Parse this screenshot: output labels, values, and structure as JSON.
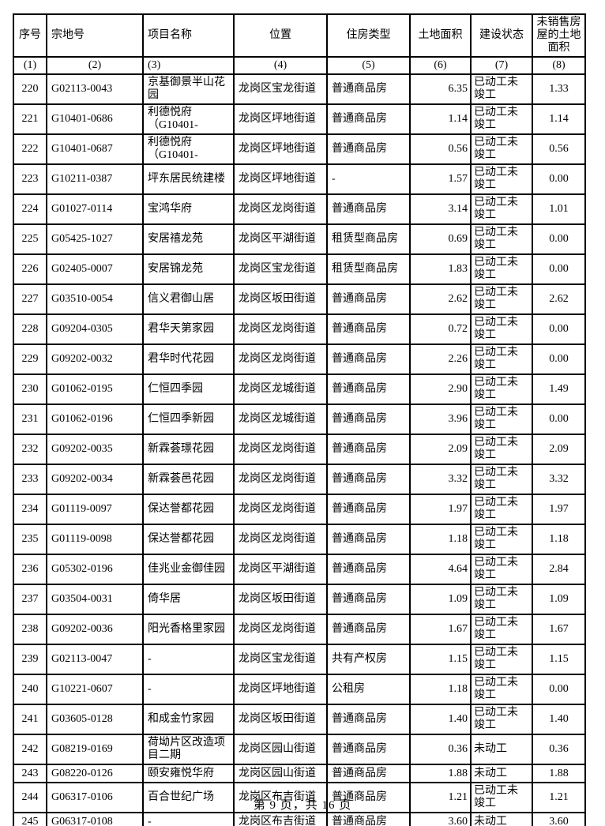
{
  "footer": {
    "text": "第 9 页，共 16 页"
  },
  "table": {
    "headers": [
      "序号",
      "宗地号",
      "项目名称",
      "位置",
      "住房类型",
      "土地面积",
      "建设状态",
      "未销售房\n屋的土地\n面积"
    ],
    "column_numbers": [
      "(1)",
      "(2)",
      "(3)",
      "(4)",
      "(5)",
      "(6)",
      "(7)",
      "(8)"
    ],
    "rows": [
      {
        "no": "220",
        "parcel": "G02113-0043",
        "name": "京基御景半山花\n园",
        "location": "龙岗区宝龙街道",
        "type": "普通商品房",
        "area": "6.35",
        "status": "已动工未\n竣工",
        "unsold": "1.33"
      },
      {
        "no": "221",
        "parcel": "G10401-0686",
        "name": "利德悦府\n（G10401-",
        "location": "龙岗区坪地街道",
        "type": "普通商品房",
        "area": "1.14",
        "status": "已动工未\n竣工",
        "unsold": "1.14"
      },
      {
        "no": "222",
        "parcel": "G10401-0687",
        "name": "利德悦府\n（G10401-",
        "location": "龙岗区坪地街道",
        "type": "普通商品房",
        "area": "0.56",
        "status": "已动工未\n竣工",
        "unsold": "0.56"
      },
      {
        "no": "223",
        "parcel": "G10211-0387",
        "name": "坪东居民统建楼",
        "location": "龙岗区坪地街道",
        "type": "-",
        "area": "1.57",
        "status": "已动工未\n竣工",
        "unsold": "0.00"
      },
      {
        "no": "224",
        "parcel": "G01027-0114",
        "name": "宝鸿华府",
        "location": "龙岗区龙岗街道",
        "type": "普通商品房",
        "area": "3.14",
        "status": "已动工未\n竣工",
        "unsold": "1.01"
      },
      {
        "no": "225",
        "parcel": "G05425-1027",
        "name": "安居禧龙苑",
        "location": "龙岗区平湖街道",
        "type": "租赁型商品房",
        "area": "0.69",
        "status": "已动工未\n竣工",
        "unsold": "0.00"
      },
      {
        "no": "226",
        "parcel": "G02405-0007",
        "name": "安居锦龙苑",
        "location": "龙岗区宝龙街道",
        "type": "租赁型商品房",
        "area": "1.83",
        "status": "已动工未\n竣工",
        "unsold": "0.00"
      },
      {
        "no": "227",
        "parcel": "G03510-0054",
        "name": "信义君御山居",
        "location": "龙岗区坂田街道",
        "type": "普通商品房",
        "area": "2.62",
        "status": "已动工未\n竣工",
        "unsold": "2.62"
      },
      {
        "no": "228",
        "parcel": "G09204-0305",
        "name": "君华天第家园",
        "location": "龙岗区龙岗街道",
        "type": "普通商品房",
        "area": "0.72",
        "status": "已动工未\n竣工",
        "unsold": "0.00"
      },
      {
        "no": "229",
        "parcel": "G09202-0032",
        "name": "君华时代花园",
        "location": "龙岗区龙岗街道",
        "type": "普通商品房",
        "area": "2.26",
        "status": "已动工未\n竣工",
        "unsold": "0.00"
      },
      {
        "no": "230",
        "parcel": "G01062-0195",
        "name": "仁恒四季园",
        "location": "龙岗区龙城街道",
        "type": "普通商品房",
        "area": "2.90",
        "status": "已动工未\n竣工",
        "unsold": "1.49"
      },
      {
        "no": "231",
        "parcel": "G01062-0196",
        "name": "仁恒四季新园",
        "location": "龙岗区龙城街道",
        "type": "普通商品房",
        "area": "3.96",
        "status": "已动工未\n竣工",
        "unsold": "0.00"
      },
      {
        "no": "232",
        "parcel": "G09202-0035",
        "name": "新霖荟璟花园",
        "location": "龙岗区龙岗街道",
        "type": "普通商品房",
        "area": "2.09",
        "status": "已动工未\n竣工",
        "unsold": "2.09"
      },
      {
        "no": "233",
        "parcel": "G09202-0034",
        "name": "新霖荟邑花园",
        "location": "龙岗区龙岗街道",
        "type": "普通商品房",
        "area": "3.32",
        "status": "已动工未\n竣工",
        "unsold": "3.32"
      },
      {
        "no": "234",
        "parcel": "G01119-0097",
        "name": "保达誉都花园",
        "location": "龙岗区龙岗街道",
        "type": "普通商品房",
        "area": "1.97",
        "status": "已动工未\n竣工",
        "unsold": "1.97"
      },
      {
        "no": "235",
        "parcel": "G01119-0098",
        "name": "保达誉都花园",
        "location": "龙岗区龙岗街道",
        "type": "普通商品房",
        "area": "1.18",
        "status": "已动工未\n竣工",
        "unsold": "1.18"
      },
      {
        "no": "236",
        "parcel": "G05302-0196",
        "name": "佳兆业金御佳园",
        "location": "龙岗区平湖街道",
        "type": "普通商品房",
        "area": "4.64",
        "status": "已动工未\n竣工",
        "unsold": "2.84"
      },
      {
        "no": "237",
        "parcel": "G03504-0031",
        "name": "倚华居",
        "location": "龙岗区坂田街道",
        "type": "普通商品房",
        "area": "1.09",
        "status": "已动工未\n竣工",
        "unsold": "1.09"
      },
      {
        "no": "238",
        "parcel": "G09202-0036",
        "name": "阳光香格里家园",
        "location": "龙岗区龙岗街道",
        "type": "普通商品房",
        "area": "1.67",
        "status": "已动工未\n竣工",
        "unsold": "1.67"
      },
      {
        "no": "239",
        "parcel": "G02113-0047",
        "name": "-",
        "location": "龙岗区宝龙街道",
        "type": "共有产权房",
        "area": "1.15",
        "status": "已动工未\n竣工",
        "unsold": "1.15"
      },
      {
        "no": "240",
        "parcel": "G10221-0607",
        "name": "-",
        "location": "龙岗区坪地街道",
        "type": "公租房",
        "area": "1.18",
        "status": "已动工未\n竣工",
        "unsold": "0.00"
      },
      {
        "no": "241",
        "parcel": "G03605-0128",
        "name": "和成金竹家园",
        "location": "龙岗区坂田街道",
        "type": "普通商品房",
        "area": "1.40",
        "status": "已动工未\n竣工",
        "unsold": "1.40"
      },
      {
        "no": "242",
        "parcel": "G08219-0169",
        "name": "荷坳片区改造项\n目二期",
        "location": "龙岗区园山街道",
        "type": "普通商品房",
        "area": "0.36",
        "status": "未动工",
        "unsold": "0.36"
      },
      {
        "no": "243",
        "parcel": "G08220-0126",
        "name": "颐安雍悦华府",
        "location": "龙岗区园山街道",
        "type": "普通商品房",
        "area": "1.88",
        "status": "未动工",
        "unsold": "1.88"
      },
      {
        "no": "244",
        "parcel": "G06317-0106",
        "name": "百合世纪广场",
        "location": "龙岗区布吉街道",
        "type": "普通商品房",
        "area": "1.21",
        "status": "已动工未\n竣工",
        "unsold": "1.21"
      },
      {
        "no": "245",
        "parcel": "G06317-0108",
        "name": "-",
        "location": "龙岗区布吉街道",
        "type": "普通商品房",
        "area": "3.60",
        "status": "未动工",
        "unsold": "3.60"
      }
    ]
  }
}
